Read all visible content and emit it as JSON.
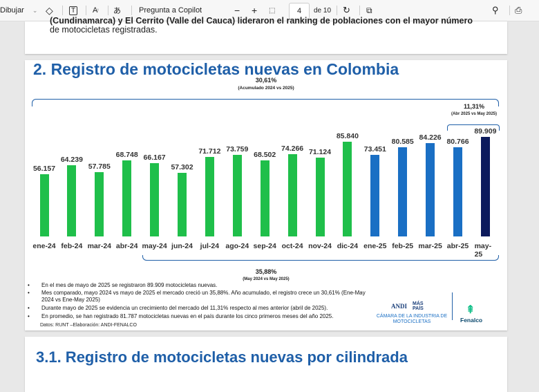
{
  "toolbar": {
    "draw": "Dibujar",
    "copilot": "Pregunta a Copilot",
    "page": "4",
    "page_total": "de 10"
  },
  "page1": {
    "line1": "(Cundinamarca) y El Cerrito (Valle del Cauca) lideraron el ranking de poblaciones con el mayor número",
    "line2": "de motocicletas registradas."
  },
  "page2": {
    "title": "2. Registro de motocicletas nuevas en Colombia",
    "ann_acum": "30,61%",
    "ann_acum_sub": "(Acumulado 2024 vs 2025)",
    "ann_abr": "11,31%",
    "ann_abr_sub": "(Abr 2025 vs May 2025)",
    "ann_may": "35,88%",
    "ann_may_sub": "(May 2024 vs May 2025)",
    "bullets": [
      "En el mes de mayo de 2025 se registraron 89.909 motocicletas nuevas.",
      "Mes comparado, mayo 2024 vs mayo de 2025 el mercado creció un 35,88%. Año acumulado, el registro crece un 30,61% (Ene-May 2024 vs Ene-May 2025)",
      "Durante mayo de 2025 se evidencia un crecimiento del mercado del 11,31% respecto al mes anterior (abril de 2025).",
      "En promedio, se han registrado 81.787 motocicletas nuevas en el país durante los cinco primeros meses del año 2025."
    ],
    "source": "Datos: RUNT –Elaboración: ANDI-FENALCO",
    "logo_andi": "ANDI",
    "logo_mas": "MÁS PAÍS",
    "logo_camara": "CÁMARA DE LA INDUSTRIA DE MOTOCICLETAS",
    "logo_fenalco": "Fenalco"
  },
  "page3": {
    "title": "3.1. Registro de motocicletas nuevas por cilindrada"
  },
  "chart_data": {
    "type": "bar",
    "title": "2. Registro de motocicletas nuevas en Colombia",
    "ylim": [
      0,
      90000
    ],
    "categories": [
      "ene-24",
      "feb-24",
      "mar-24",
      "abr-24",
      "may-24",
      "jun-24",
      "jul-24",
      "ago-24",
      "sep-24",
      "oct-24",
      "nov-24",
      "dic-24",
      "ene-25",
      "feb-25",
      "mar-25",
      "abr-25",
      "may-25"
    ],
    "values": [
      56157,
      64239,
      57785,
      68748,
      66167,
      57302,
      71712,
      73759,
      68502,
      74266,
      71124,
      85840,
      73451,
      80585,
      84226,
      80766,
      89909
    ],
    "labels": [
      "56.157",
      "64.239",
      "57.785",
      "68.748",
      "66.167",
      "57.302",
      "71.712",
      "73.759",
      "68.502",
      "74.266",
      "71.124",
      "85.840",
      "73.451",
      "80.585",
      "84.226",
      "80.766",
      "89.909"
    ],
    "colors": {
      "2024": "#1fbf4a",
      "2025": "#1a6fc4",
      "latest": "#0c1a5c"
    }
  }
}
